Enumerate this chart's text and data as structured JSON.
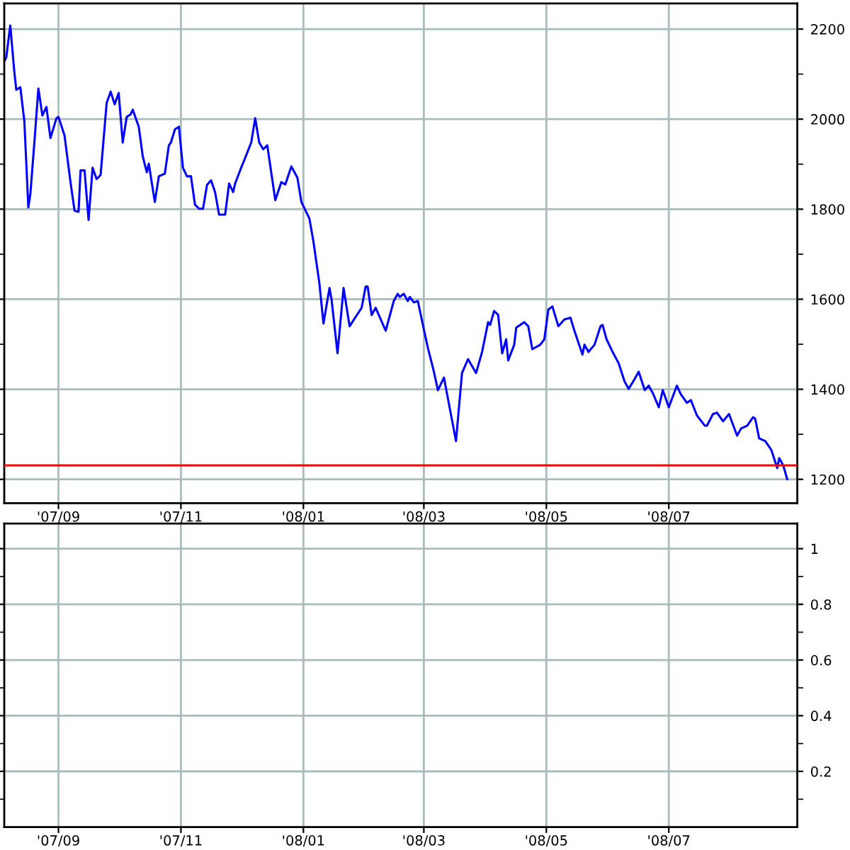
{
  "chart_data": [
    {
      "type": "line",
      "grid": true,
      "series": [
        {
          "color": "#0000ff",
          "x": [
            "2007-08-05",
            "2007-08-06",
            "2007-08-08",
            "2007-08-10",
            "2007-08-11",
            "2007-08-13",
            "2007-08-15",
            "2007-08-17",
            "2007-08-18",
            "2007-08-20",
            "2007-08-22",
            "2007-08-24",
            "2007-08-26",
            "2007-08-28",
            "2007-08-31",
            "2007-09-01",
            "2007-09-04",
            "2007-09-07",
            "2007-09-09",
            "2007-09-11",
            "2007-09-12",
            "2007-09-14",
            "2007-09-16",
            "2007-09-18",
            "2007-09-20",
            "2007-09-22",
            "2007-09-25",
            "2007-09-27",
            "2007-09-29",
            "2007-10-01",
            "2007-10-03",
            "2007-10-05",
            "2007-10-07",
            "2007-10-08",
            "2007-10-11",
            "2007-10-13",
            "2007-10-15",
            "2007-10-16",
            "2007-10-19",
            "2007-10-21",
            "2007-10-24",
            "2007-10-26",
            "2007-10-27",
            "2007-10-29",
            "2007-10-31",
            "2007-11-02",
            "2007-11-04",
            "2007-11-06",
            "2007-11-08",
            "2007-11-10",
            "2007-11-12",
            "2007-11-14",
            "2007-11-16",
            "2007-11-18",
            "2007-11-20",
            "2007-11-23",
            "2007-11-25",
            "2007-11-27",
            "2007-11-28",
            "2007-12-01",
            "2007-12-03",
            "2007-12-06",
            "2007-12-08",
            "2007-12-10",
            "2007-12-12",
            "2007-12-14",
            "2007-12-18",
            "2007-12-21",
            "2007-12-23",
            "2007-12-26",
            "2007-12-29",
            "2007-12-31",
            "2008-01-04",
            "2008-01-06",
            "2008-01-09",
            "2008-01-11",
            "2008-01-14",
            "2008-01-15",
            "2008-01-18",
            "2008-01-21",
            "2008-01-24",
            "2008-01-30",
            "2008-02-01",
            "2008-02-02",
            "2008-02-04",
            "2008-02-06",
            "2008-02-11",
            "2008-02-15",
            "2008-02-17",
            "2008-02-18",
            "2008-02-20",
            "2008-02-22",
            "2008-02-23",
            "2008-02-25",
            "2008-02-27",
            "2008-03-01",
            "2008-03-03",
            "2008-03-06",
            "2008-03-08",
            "2008-03-11",
            "2008-03-17",
            "2008-03-20",
            "2008-03-23",
            "2008-03-27",
            "2008-03-30",
            "2008-04-02",
            "2008-04-03",
            "2008-04-05",
            "2008-04-07",
            "2008-04-09",
            "2008-04-11",
            "2008-04-12",
            "2008-04-15",
            "2008-04-16",
            "2008-04-20",
            "2008-04-22",
            "2008-04-24",
            "2008-04-28",
            "2008-04-30",
            "2008-05-02",
            "2008-05-04",
            "2008-05-07",
            "2008-05-10",
            "2008-05-13",
            "2008-05-15",
            "2008-05-19",
            "2008-05-20",
            "2008-05-22",
            "2008-05-25",
            "2008-05-28",
            "2008-05-29",
            "2008-05-31",
            "2008-06-03",
            "2008-06-06",
            "2008-06-09",
            "2008-06-11",
            "2008-06-14",
            "2008-06-16",
            "2008-06-19",
            "2008-06-21",
            "2008-06-23",
            "2008-06-26",
            "2008-06-28",
            "2008-07-01",
            "2008-07-05",
            "2008-07-07",
            "2008-07-10",
            "2008-07-12",
            "2008-07-15",
            "2008-07-19",
            "2008-07-20",
            "2008-07-23",
            "2008-07-25",
            "2008-07-28",
            "2008-07-31",
            "2008-08-04",
            "2008-08-06",
            "2008-08-09",
            "2008-08-12",
            "2008-08-13",
            "2008-08-15",
            "2008-08-18",
            "2008-08-21",
            "2008-08-24",
            "2008-08-25",
            "2008-08-27",
            "2008-08-29"
          ],
          "values": [
            2128,
            2137,
            2208,
            2106,
            2065,
            2071,
            1996,
            1804,
            1833,
            1948,
            2068,
            2008,
            2027,
            1958,
            2002,
            2005,
            1964,
            1860,
            1797,
            1794,
            1886,
            1886,
            1776,
            1892,
            1867,
            1876,
            2036,
            2061,
            2033,
            2058,
            1948,
            2005,
            2011,
            2021,
            1983,
            1917,
            1882,
            1901,
            1816,
            1873,
            1879,
            1942,
            1948,
            1977,
            1983,
            1892,
            1873,
            1873,
            1810,
            1801,
            1801,
            1854,
            1864,
            1838,
            1788,
            1788,
            1857,
            1838,
            1857,
            1892,
            1914,
            1948,
            2002,
            1948,
            1933,
            1942,
            1820,
            1860,
            1855,
            1895,
            1870,
            1816,
            1779,
            1728,
            1634,
            1546,
            1625,
            1600,
            1480,
            1625,
            1540,
            1581,
            1628,
            1628,
            1565,
            1581,
            1530,
            1596,
            1612,
            1605,
            1612,
            1596,
            1605,
            1593,
            1596,
            1533,
            1492,
            1439,
            1398,
            1426,
            1285,
            1436,
            1467,
            1436,
            1483,
            1549,
            1543,
            1574,
            1565,
            1480,
            1511,
            1464,
            1499,
            1537,
            1549,
            1540,
            1489,
            1499,
            1511,
            1577,
            1584,
            1540,
            1555,
            1559,
            1530,
            1477,
            1499,
            1483,
            1499,
            1540,
            1543,
            1511,
            1483,
            1458,
            1417,
            1401,
            1423,
            1439,
            1398,
            1408,
            1392,
            1360,
            1398,
            1360,
            1408,
            1389,
            1370,
            1376,
            1342,
            1319,
            1319,
            1345,
            1348,
            1329,
            1345,
            1297,
            1313,
            1319,
            1338,
            1335,
            1291,
            1285,
            1266,
            1225,
            1247,
            1231,
            1200
          ]
        }
      ],
      "xlim": [
        "2007-08-05",
        "2008-09-03"
      ],
      "xticks": [
        {
          "value": "2007-09-01",
          "label": "'07/09"
        },
        {
          "value": "2007-11-01",
          "label": "'07/11"
        },
        {
          "value": "2008-01-01",
          "label": "'08/01"
        },
        {
          "value": "2008-03-01",
          "label": "'08/03"
        },
        {
          "value": "2008-05-01",
          "label": "'08/05"
        },
        {
          "value": "2008-07-01",
          "label": "'08/07"
        }
      ],
      "ylim": [
        1147,
        2257
      ],
      "yticks": [
        1200,
        {
          "value": 1300,
          "label": null
        },
        1400,
        {
          "value": 1500,
          "label": null
        },
        1600,
        {
          "value": 1700,
          "label": null
        },
        1800,
        {
          "value": 1900,
          "label": null
        },
        2000,
        {
          "value": 2100,
          "label": null
        },
        2200
      ],
      "ref_lines": [
        {
          "axis": "y",
          "value": 1231,
          "color": "#ff0000"
        }
      ]
    },
    {
      "type": "line",
      "grid": true,
      "xlim": [
        "2007-08-05",
        "2008-09-03"
      ],
      "xticks": [
        {
          "value": "2007-09-01",
          "label": "'07/09"
        },
        {
          "value": "2007-11-01",
          "label": "'07/11"
        },
        {
          "value": "2008-01-01",
          "label": "'08/01"
        },
        {
          "value": "2008-03-01",
          "label": "'08/03"
        },
        {
          "value": "2008-05-01",
          "label": "'08/05"
        },
        {
          "value": "2008-07-01",
          "label": "'08/07"
        }
      ],
      "ylim": [
        0,
        1.09
      ],
      "yticks": [
        {
          "value": 0.1,
          "label": null
        },
        0.2,
        {
          "value": 0.3,
          "label": null
        },
        0.4,
        {
          "value": 0.5,
          "label": null
        },
        0.6,
        {
          "value": 0.7,
          "label": null
        },
        0.8,
        {
          "value": 0.9,
          "label": null
        },
        1
      ]
    }
  ]
}
